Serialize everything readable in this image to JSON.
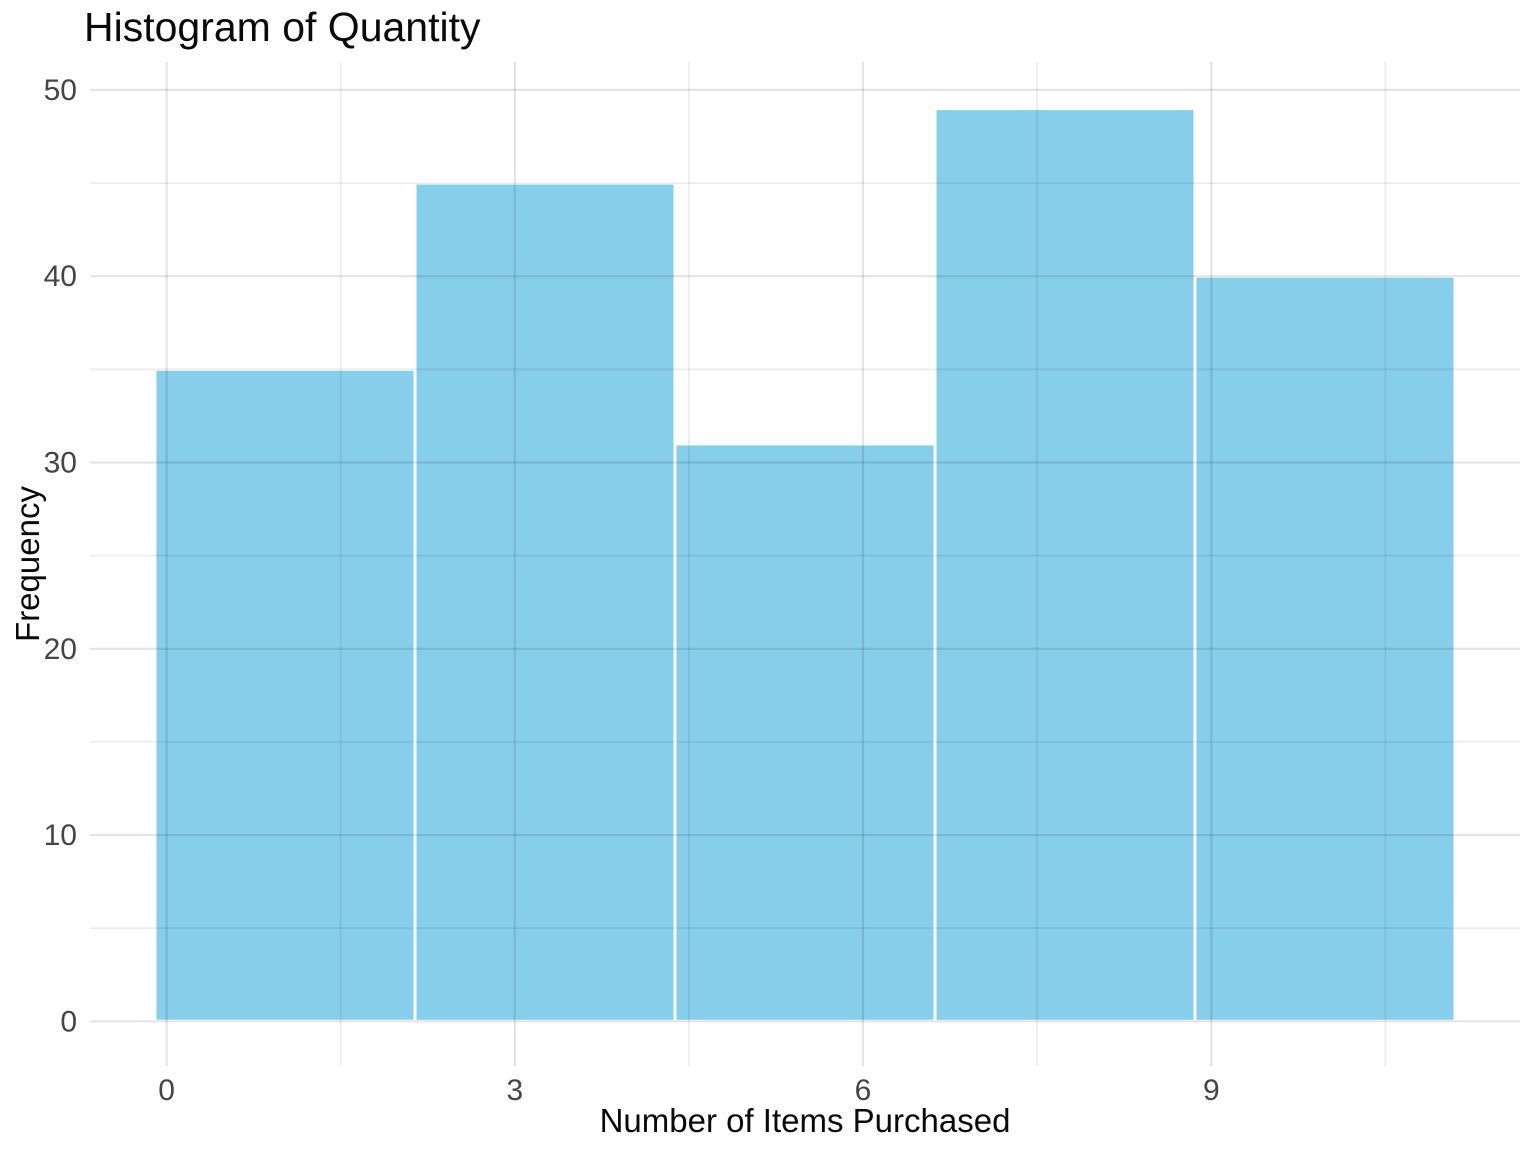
{
  "chart_data": {
    "type": "bar",
    "subtype": "histogram",
    "title": "Histogram of Quantity",
    "xlabel": "Number of Items Purchased",
    "ylabel": "Frequency",
    "frequencies": [
      35,
      45,
      31,
      49,
      40
    ],
    "bin_edges": [
      -0.1,
      2.14,
      4.38,
      6.62,
      8.86,
      11.1
    ],
    "x_major_ticks": [
      0,
      3,
      6,
      9
    ],
    "x_minor_ticks": [
      1.5,
      4.5,
      7.5,
      10.5
    ],
    "y_major_ticks": [
      0,
      10,
      20,
      30,
      40,
      50
    ],
    "y_minor_ticks": [
      5,
      15,
      25,
      35,
      45
    ],
    "xlim": [
      -0.66,
      11.66
    ],
    "ylim": [
      -2.4,
      51.5
    ],
    "grid": true,
    "legend": false,
    "colors": {
      "bar_fill": "#87CEEB",
      "bar_stroke": "#FFFFFF",
      "background": "#FFFFFF",
      "grid_major": "rgba(0,0,0,0.105)",
      "grid_minor": "rgba(0,0,0,0.07)",
      "tick_label": "#454545",
      "text": "#0a0a0a"
    }
  }
}
